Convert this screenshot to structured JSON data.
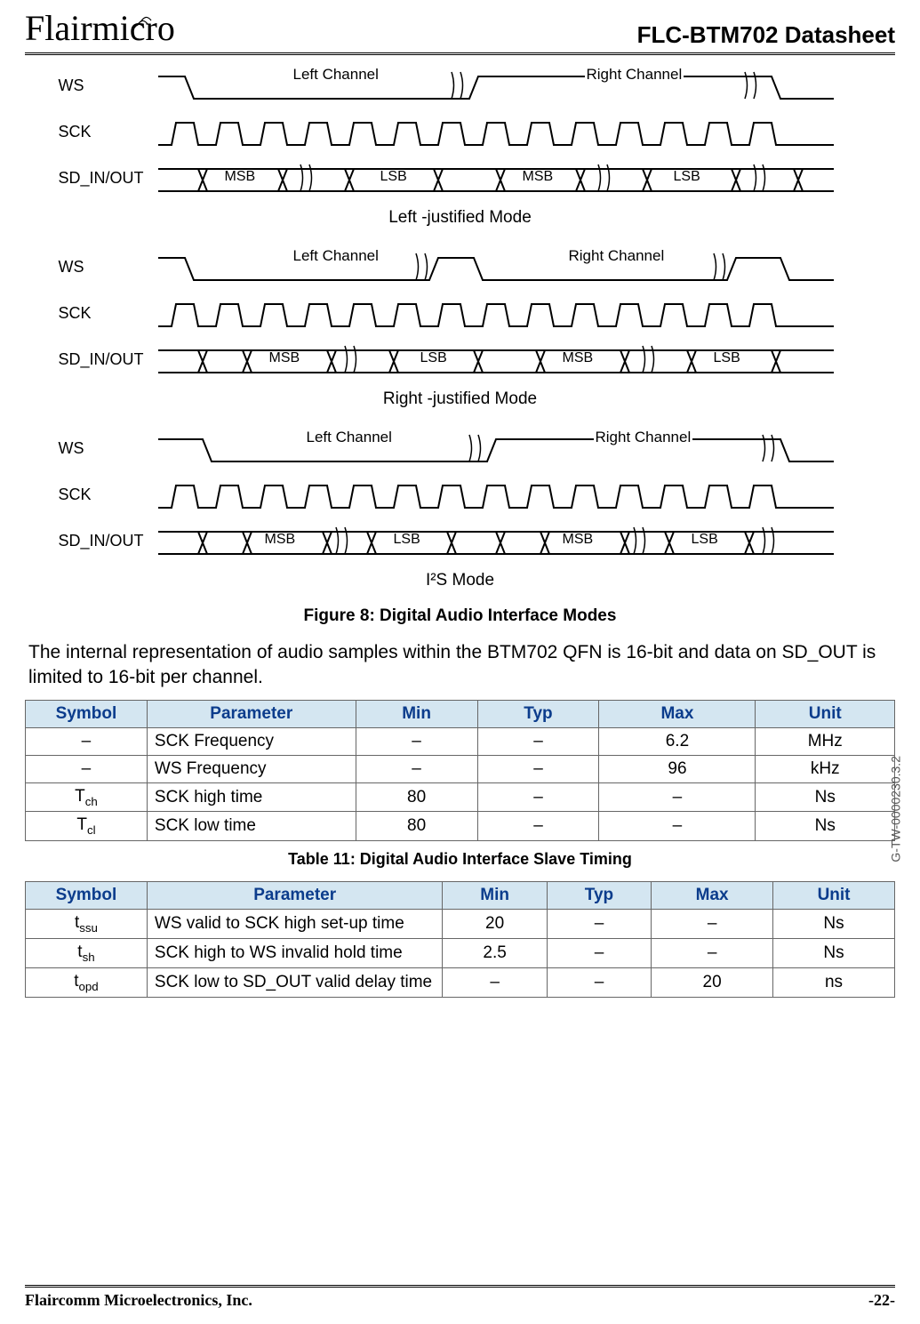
{
  "header": {
    "company_logo_text": "Flairmicro",
    "document_title": "FLC-BTM702 Datasheet"
  },
  "figure": {
    "side_ref": "G-TW-0000230.3.2",
    "signals": [
      "WS",
      "SCK",
      "SD_IN/OUT"
    ],
    "channel_left": "Left Channel",
    "channel_right": "Right Channel",
    "msb": "MSB",
    "lsb": "LSB",
    "mode1_caption": "Left -justified Mode",
    "mode2_caption": "Right -justified Mode",
    "mode3_caption": "I²S Mode",
    "caption": "Figure 8: Digital Audio Interface Modes"
  },
  "body_text": "The internal representation of audio samples within the BTM702 QFN is 16-bit and data on SD_OUT is limited to 16-bit per channel.",
  "table1": {
    "columns": [
      "Symbol",
      "Parameter",
      "Min",
      "Typ",
      "Max",
      "Unit"
    ],
    "col_widths": [
      "14%",
      "24%",
      "14%",
      "14%",
      "18%",
      "16%"
    ],
    "header_bg": "#d4e6f1",
    "header_color": "#0b3c8c",
    "rows": [
      {
        "symbol": "–",
        "param": "SCK Frequency",
        "min": "–",
        "typ": "–",
        "max": "6.2",
        "unit": "MHz"
      },
      {
        "symbol": "–",
        "param": "WS Frequency",
        "min": "–",
        "typ": "–",
        "max": "96",
        "unit": "kHz"
      },
      {
        "symbol_base": "T",
        "symbol_sub": "ch",
        "param": "SCK high time",
        "min": "80",
        "typ": "–",
        "max": "–",
        "unit": "Ns"
      },
      {
        "symbol_base": "T",
        "symbol_sub": "cl",
        "param": "SCK low time",
        "min": "80",
        "typ": "–",
        "max": "–",
        "unit": "Ns"
      }
    ]
  },
  "table1_caption": "Table 11: Digital Audio Interface Slave Timing",
  "table2": {
    "columns": [
      "Symbol",
      "Parameter",
      "Min",
      "Typ",
      "Max",
      "Unit"
    ],
    "col_widths": [
      "14%",
      "34%",
      "12%",
      "12%",
      "14%",
      "14%"
    ],
    "rows": [
      {
        "symbol_base": "t",
        "symbol_sub": "ssu",
        "param": "WS valid to SCK high set-up time",
        "min": "20",
        "typ": "–",
        "max": "–",
        "unit": "Ns"
      },
      {
        "symbol_base": "t",
        "symbol_sub": "sh",
        "param": "SCK high to WS invalid hold time",
        "min": "2.5",
        "typ": "–",
        "max": "–",
        "unit": "Ns"
      },
      {
        "symbol_base": "t",
        "symbol_sub": "opd",
        "param": "SCK low to SD_OUT valid delay time",
        "min": "–",
        "typ": "–",
        "max": "20",
        "unit": "ns"
      }
    ]
  },
  "footer": {
    "left": "Flaircomm Microelectronics, Inc.",
    "right": "-22-"
  }
}
